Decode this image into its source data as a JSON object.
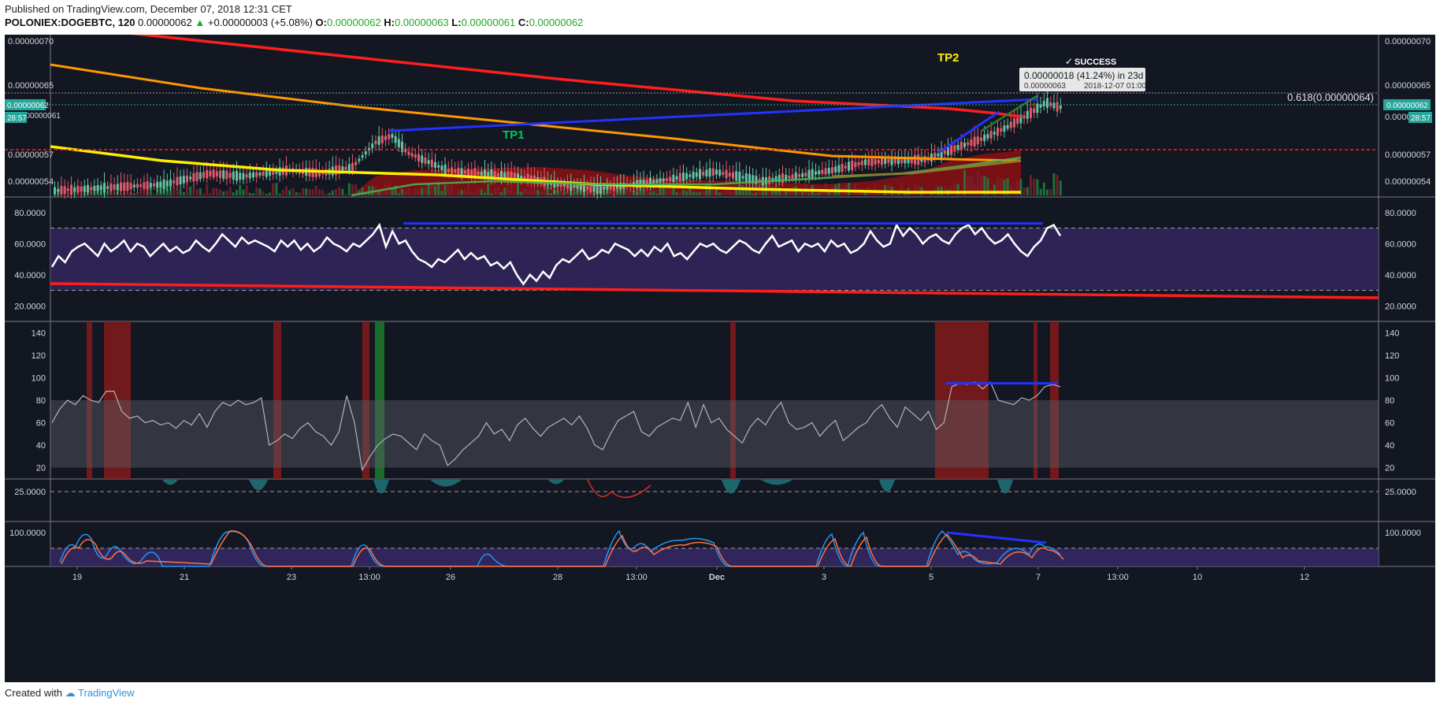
{
  "published": "Published on TradingView.com, December 07, 2018 12:31 CET",
  "header": {
    "symbol": "POLONIEX:DOGEBTC, 120",
    "last": "0.00000062",
    "change": "+0.00000003 (+5.08%)",
    "o_label": "O:",
    "o": "0.00000062",
    "h_label": "H:",
    "h": "0.00000063",
    "l_label": "L:",
    "l": "0.00000061",
    "c_label": "C:",
    "c": "0.00000062"
  },
  "footer": {
    "created": "Created with",
    "brand": "TradingView"
  },
  "colors": {
    "bg": "#131722",
    "up": "#26a69a",
    "down": "#ef5350",
    "red_ma": "#ff1e1e",
    "orange_ma": "#ff9800",
    "yellow_ma": "#ffeb3b",
    "blue": "#2233ff",
    "rsi_band": "#3a2a6b",
    "white": "#ffffff"
  },
  "chart_data": [
    {
      "type": "line",
      "panel": "price",
      "price_axis": [
        "0.00000070",
        "0.00000065",
        "0.00000061",
        "0.00000057",
        "0.00000054"
      ],
      "price_axis_left": [
        "0.00000070",
        "0.00000065",
        "0.00000057",
        "0.00000054"
      ],
      "last_price_tag": "0.00000062",
      "left_tag_2": "0.00000061",
      "timer": "28:57",
      "annotations": {
        "tp1": "TP1",
        "tp2": "TP2",
        "success": "SUCCESS",
        "fib": "0.618(0.00000064)",
        "measure_line1": "0.00000018 (41.24%) in 23d",
        "measure_line2a": "0.00000063",
        "measure_line2b": "2018-12-07  01:00"
      },
      "ylim": [
        5.1e-07,
        7.1e-07
      ]
    },
    {
      "type": "line",
      "panel": "rsi",
      "y_ticks": [
        "80.0000",
        "60.0000",
        "40.0000",
        "20.0000"
      ],
      "ylim": [
        10,
        90
      ],
      "upper_band": 70,
      "lower_band": 30,
      "values": [
        45,
        52,
        48,
        55,
        58,
        60,
        56,
        52,
        60,
        55,
        58,
        62,
        55,
        60,
        58,
        52,
        56,
        60,
        55,
        58,
        54,
        56,
        62,
        58,
        55,
        60,
        66,
        62,
        58,
        64,
        60,
        62,
        60,
        58,
        55,
        62,
        58,
        62,
        56,
        60,
        55,
        58,
        64,
        60,
        58,
        55,
        60,
        58,
        62,
        66,
        72,
        58,
        68,
        60,
        62,
        55,
        50,
        48,
        45,
        50,
        48,
        52,
        56,
        50,
        54,
        50,
        52,
        46,
        48,
        44,
        48,
        40,
        34,
        40,
        36,
        42,
        38,
        46,
        50,
        48,
        52,
        56,
        50,
        52,
        56,
        54,
        60,
        58,
        56,
        52,
        56,
        52,
        58,
        55,
        60,
        52,
        54,
        50,
        55,
        60,
        58,
        60,
        56,
        54,
        58,
        62,
        60,
        56,
        54,
        60,
        65,
        58,
        60,
        62,
        55,
        60,
        58,
        60,
        55,
        62,
        58,
        60,
        54,
        56,
        60,
        68,
        62,
        58,
        60,
        72,
        65,
        70,
        66,
        60,
        64,
        66,
        62,
        60,
        66,
        70,
        72,
        66,
        70,
        64,
        60,
        62,
        66,
        60,
        55,
        52,
        58,
        62,
        70,
        72,
        65
      ],
      "trend_top": 73
    },
    {
      "type": "line",
      "panel": "oscillator",
      "y_ticks": [
        "140",
        "120",
        "100",
        "80",
        "60",
        "40",
        "20"
      ],
      "ylim": [
        10,
        150
      ],
      "band": [
        20,
        80
      ],
      "values": [
        60,
        72,
        80,
        76,
        84,
        80,
        78,
        88,
        88,
        70,
        64,
        66,
        60,
        62,
        58,
        60,
        55,
        62,
        58,
        68,
        56,
        70,
        78,
        75,
        80,
        76,
        78,
        82,
        40,
        44,
        50,
        46,
        55,
        60,
        52,
        48,
        40,
        52,
        84,
        60,
        18,
        30,
        40,
        46,
        50,
        48,
        42,
        36,
        50,
        44,
        40,
        22,
        28,
        36,
        42,
        48,
        60,
        50,
        54,
        44,
        58,
        64,
        55,
        48,
        56,
        60,
        64,
        58,
        66,
        55,
        40,
        36,
        50,
        62,
        66,
        70,
        52,
        48,
        56,
        60,
        64,
        62,
        78,
        56,
        76,
        60,
        64,
        54,
        48,
        42,
        56,
        64,
        58,
        70,
        78,
        60,
        54,
        56,
        60,
        48,
        56,
        62,
        44,
        50,
        56,
        60,
        70,
        76,
        64,
        56,
        74,
        68,
        62,
        70,
        54,
        60,
        92,
        95,
        94,
        96,
        90,
        96,
        80,
        78,
        76,
        82,
        80,
        84,
        92,
        94,
        92
      ],
      "trend_level": 95
    },
    {
      "type": "area",
      "panel": "histogram",
      "y_ticks": [
        "25.0000"
      ]
    },
    {
      "type": "line",
      "panel": "stoch",
      "y_ticks": [
        "100.0000"
      ],
      "ylim": [
        0,
        120
      ]
    }
  ],
  "x_axis": {
    "labels": [
      "19",
      "21",
      "23",
      "13:00",
      "26",
      "28",
      "13:00",
      "Dec",
      "3",
      "5",
      "7",
      "13:00",
      "10",
      "12"
    ]
  }
}
